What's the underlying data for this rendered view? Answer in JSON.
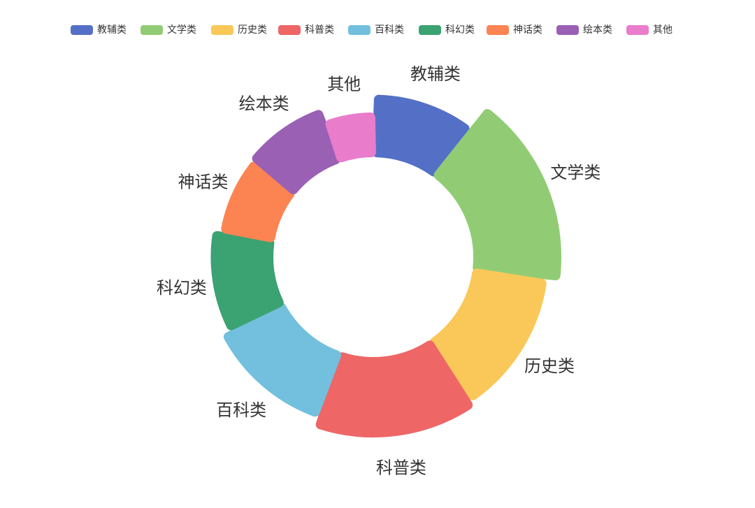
{
  "chart_data": {
    "type": "pie",
    "subtype": "rose-donut",
    "title": "",
    "legend_position": "top",
    "categories": [
      "教辅类",
      "文学类",
      "历史类",
      "科普类",
      "百科类",
      "科幻类",
      "神话类",
      "绘本类",
      "其他"
    ],
    "values": [
      14,
      24,
      19,
      21,
      17,
      14,
      11,
      12,
      7
    ],
    "colors": [
      "#5470c6",
      "#91cc75",
      "#fac858",
      "#ee6666",
      "#73c0de",
      "#3ba272",
      "#fc8452",
      "#9a60b4",
      "#ea7ccc"
    ]
  }
}
